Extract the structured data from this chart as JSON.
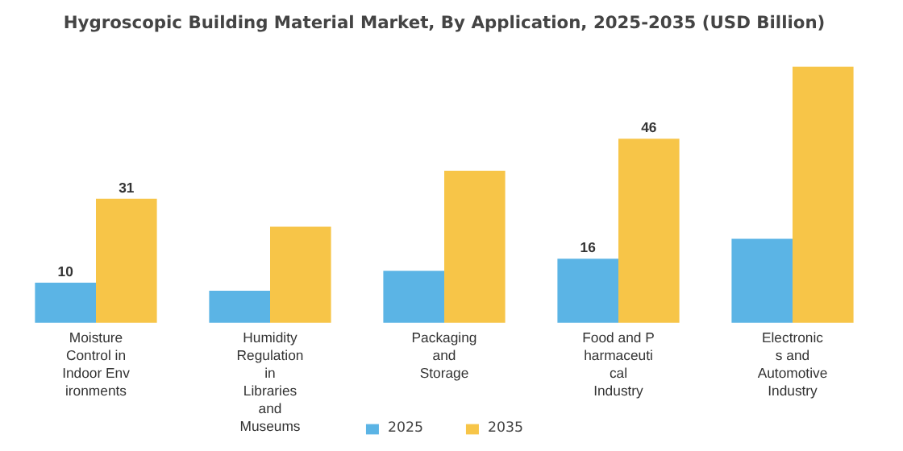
{
  "chart_data": {
    "type": "bar",
    "title": "Hygroscopic Building Material Market, By Application, 2025-2035 (USD Billion)",
    "categories": [
      "Moisture Control in Indoor Environments",
      "Humidity Regulation in Libraries and Museums",
      "Packaging and Storage",
      "Food and Pharmaceutical Industry",
      "Electronics and Automotive Industry"
    ],
    "series": [
      {
        "name": "2025",
        "color": "#5bb4e5",
        "values": [
          10,
          8,
          13,
          16,
          21
        ],
        "value_labels": [
          "10",
          null,
          null,
          "16",
          null
        ]
      },
      {
        "name": "2035",
        "color": "#f7c548",
        "values": [
          31,
          24,
          38,
          46,
          64
        ],
        "value_labels": [
          "31",
          null,
          null,
          "46",
          null
        ]
      }
    ],
    "legend": "bottom"
  }
}
